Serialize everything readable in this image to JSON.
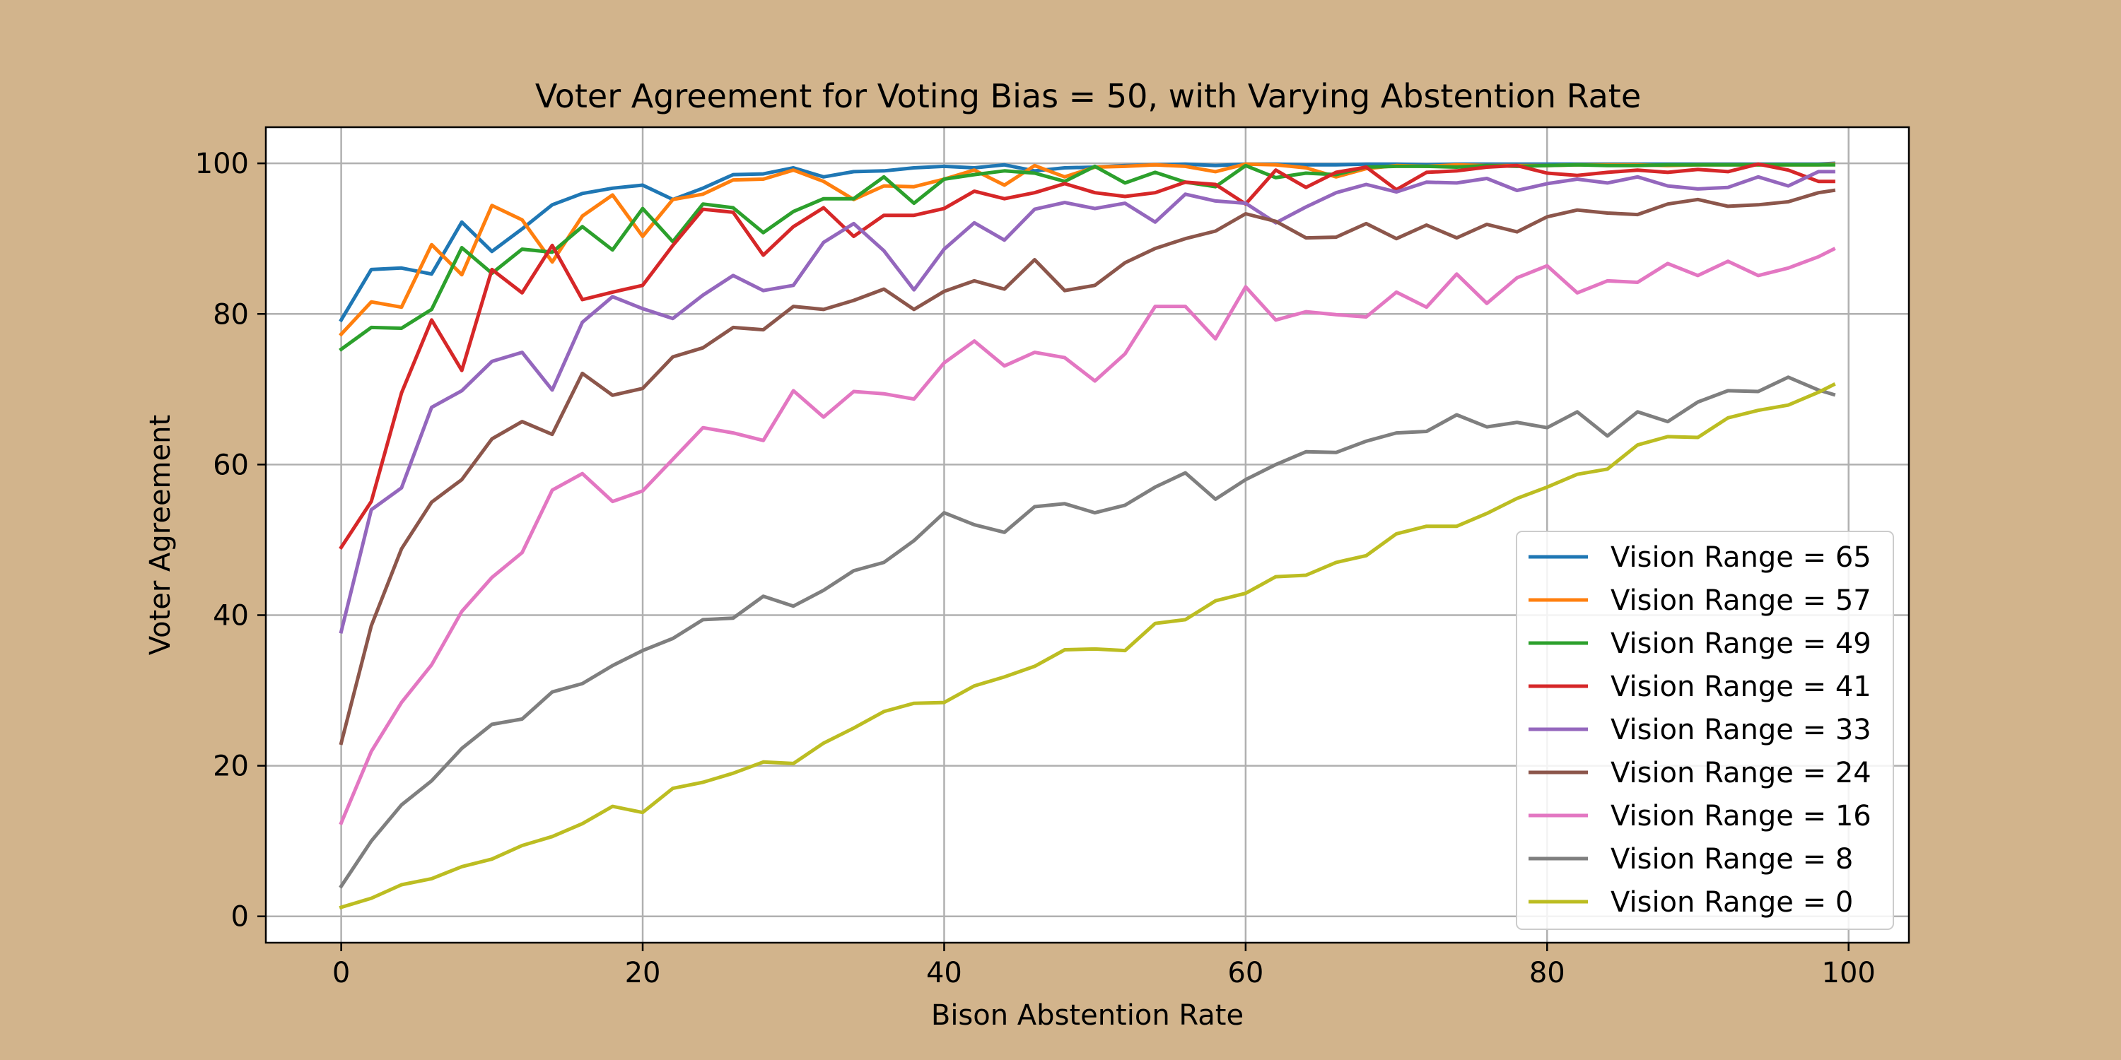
{
  "chart_data": {
    "type": "line",
    "title": "Voter Agreement for Voting Bias = 50, with Varying Abstention Rate",
    "xlabel": "Bison Abstention Rate",
    "ylabel": "Voter Agreement",
    "xlim": [
      -5,
      104
    ],
    "ylim": [
      -3.5,
      104.8
    ],
    "xticks": [
      0,
      20,
      40,
      60,
      80,
      100
    ],
    "yticks": [
      0,
      20,
      40,
      60,
      80,
      100
    ],
    "xtick_labels": [
      "0",
      "20",
      "40",
      "60",
      "80",
      "100"
    ],
    "ytick_labels": [
      "0",
      "20",
      "40",
      "60",
      "80",
      "100"
    ],
    "grid": true,
    "legend_position": "lower right",
    "background": "#d2b48c",
    "x": [
      0,
      2,
      4,
      6,
      8,
      10,
      12,
      14,
      16,
      18,
      20,
      22,
      24,
      26,
      28,
      30,
      32,
      34,
      36,
      38,
      40,
      42,
      44,
      46,
      48,
      50,
      52,
      54,
      56,
      58,
      60,
      62,
      64,
      66,
      68,
      70,
      72,
      74,
      76,
      78,
      80,
      82,
      84,
      86,
      88,
      90,
      92,
      94,
      96,
      98,
      99
    ],
    "series": [
      {
        "name": "Vision Range = 65",
        "color": "#1f77b4",
        "values": [
          79.2,
          85.9,
          86.1,
          85.3,
          92.2,
          88.3,
          91.3,
          94.5,
          96.0,
          96.7,
          97.1,
          95.2,
          96.7,
          98.5,
          98.6,
          99.4,
          98.2,
          98.9,
          99.0,
          99.4,
          99.6,
          99.4,
          99.8,
          99.0,
          99.4,
          99.5,
          99.7,
          99.8,
          99.9,
          99.7,
          99.9,
          99.9,
          99.8,
          99.8,
          99.9,
          99.9,
          99.8,
          99.9,
          99.9,
          99.9,
          99.9,
          99.9,
          99.9,
          99.9,
          99.9,
          99.9,
          99.9,
          99.9,
          99.9,
          99.9,
          100.0
        ]
      },
      {
        "name": "Vision Range = 57",
        "color": "#ff7f0e",
        "values": [
          77.3,
          81.6,
          80.9,
          89.2,
          85.2,
          94.4,
          92.5,
          86.9,
          93.0,
          95.8,
          90.3,
          95.2,
          95.9,
          97.8,
          97.9,
          99.1,
          97.6,
          95.2,
          97.0,
          96.9,
          97.9,
          99.1,
          97.1,
          99.7,
          98.2,
          99.5,
          99.6,
          99.8,
          99.6,
          98.9,
          99.9,
          99.8,
          99.4,
          98.2,
          99.3,
          99.7,
          99.6,
          99.8,
          99.7,
          99.7,
          99.7,
          99.8,
          99.8,
          99.8,
          99.7,
          99.8,
          99.8,
          99.8,
          99.8,
          99.8,
          99.9
        ]
      },
      {
        "name": "Vision Range = 49",
        "color": "#2ca02c",
        "values": [
          75.3,
          78.2,
          78.1,
          80.6,
          88.8,
          85.4,
          88.6,
          88.2,
          91.6,
          88.5,
          94.0,
          89.6,
          94.6,
          94.1,
          90.8,
          93.6,
          95.3,
          95.3,
          98.2,
          94.7,
          97.9,
          98.5,
          99.0,
          98.7,
          97.6,
          99.6,
          97.4,
          98.8,
          97.5,
          96.9,
          99.7,
          98.1,
          98.7,
          98.5,
          99.5,
          99.6,
          99.6,
          99.5,
          99.7,
          99.6,
          99.7,
          99.8,
          99.7,
          99.7,
          99.8,
          99.8,
          99.8,
          99.8,
          99.8,
          99.8,
          99.8
        ]
      },
      {
        "name": "Vision Range = 41",
        "color": "#d62728",
        "values": [
          49.0,
          55.1,
          69.5,
          79.2,
          72.5,
          85.9,
          82.8,
          89.1,
          81.9,
          82.9,
          83.8,
          89.1,
          93.9,
          93.5,
          87.8,
          91.6,
          94.1,
          90.3,
          93.1,
          93.1,
          94.0,
          96.3,
          95.3,
          96.1,
          97.3,
          96.1,
          95.6,
          96.1,
          97.5,
          97.2,
          94.6,
          99.1,
          96.8,
          98.8,
          99.5,
          96.5,
          98.8,
          99.0,
          99.5,
          99.7,
          98.7,
          98.4,
          98.8,
          99.1,
          98.8,
          99.2,
          98.9,
          99.9,
          99.1,
          97.6,
          97.6
        ]
      },
      {
        "name": "Vision Range = 33",
        "color": "#9467bd",
        "values": [
          37.8,
          54.0,
          56.9,
          67.6,
          69.8,
          73.7,
          74.9,
          69.9,
          78.9,
          82.3,
          80.7,
          79.4,
          82.5,
          85.1,
          83.1,
          83.8,
          89.5,
          92.0,
          88.4,
          83.2,
          88.6,
          92.1,
          89.8,
          93.9,
          94.8,
          94.0,
          94.7,
          92.2,
          95.9,
          95.0,
          94.7,
          92.1,
          94.2,
          96.1,
          97.2,
          96.2,
          97.5,
          97.4,
          98.0,
          96.4,
          97.3,
          97.9,
          97.4,
          98.2,
          97.0,
          96.6,
          96.8,
          98.2,
          97.0,
          98.9,
          98.9
        ]
      },
      {
        "name": "Vision Range = 24",
        "color": "#8c564b",
        "values": [
          23.0,
          38.6,
          48.8,
          55.0,
          58.0,
          63.4,
          65.7,
          64.0,
          72.1,
          69.2,
          70.1,
          74.3,
          75.5,
          78.2,
          77.9,
          81.0,
          80.6,
          81.8,
          83.3,
          80.6,
          83.0,
          84.4,
          83.3,
          87.2,
          83.1,
          83.8,
          86.8,
          88.7,
          90.0,
          91.0,
          93.3,
          92.3,
          90.1,
          90.2,
          92.0,
          90.0,
          91.8,
          90.1,
          91.9,
          90.9,
          92.9,
          93.8,
          93.4,
          93.2,
          94.6,
          95.2,
          94.3,
          94.5,
          94.9,
          96.1,
          96.4
        ]
      },
      {
        "name": "Vision Range = 16",
        "color": "#e377c2",
        "values": [
          12.4,
          21.9,
          28.4,
          33.4,
          40.5,
          45.0,
          48.3,
          56.6,
          58.8,
          55.1,
          56.5,
          60.7,
          64.9,
          64.2,
          63.2,
          69.8,
          66.3,
          69.7,
          69.4,
          68.7,
          73.5,
          76.4,
          73.1,
          74.9,
          74.2,
          71.1,
          74.7,
          81.0,
          81.0,
          76.7,
          83.6,
          79.2,
          80.3,
          79.9,
          79.6,
          82.9,
          80.9,
          85.3,
          81.4,
          84.8,
          86.4,
          82.8,
          84.4,
          84.2,
          86.7,
          85.1,
          87.0,
          85.1,
          86.1,
          87.6,
          88.6
        ]
      },
      {
        "name": "Vision Range = 8",
        "color": "#7f7f7f",
        "values": [
          4.0,
          10.0,
          14.8,
          18.0,
          22.3,
          25.5,
          26.2,
          29.8,
          30.9,
          33.3,
          35.3,
          36.9,
          39.4,
          39.6,
          42.5,
          41.2,
          43.3,
          45.9,
          47.0,
          49.9,
          53.6,
          52.0,
          51.0,
          54.4,
          54.8,
          53.6,
          54.6,
          57.0,
          58.9,
          55.4,
          58.0,
          60.0,
          61.7,
          61.6,
          63.1,
          64.2,
          64.4,
          66.6,
          65.0,
          65.6,
          64.9,
          67.0,
          63.8,
          67.0,
          65.7,
          68.3,
          69.8,
          69.7,
          71.6,
          69.9,
          69.3
        ]
      },
      {
        "name": "Vision Range = 0",
        "color": "#bcbd22",
        "values": [
          1.2,
          2.4,
          4.2,
          5.0,
          6.6,
          7.6,
          9.4,
          10.6,
          12.3,
          14.6,
          13.8,
          17.0,
          17.8,
          19.0,
          20.5,
          20.3,
          23.0,
          25.0,
          27.2,
          28.3,
          28.4,
          30.6,
          31.8,
          33.2,
          35.4,
          35.5,
          35.3,
          38.9,
          39.4,
          41.9,
          42.9,
          45.1,
          45.3,
          47.0,
          47.9,
          50.8,
          51.8,
          51.8,
          53.5,
          55.5,
          57.0,
          58.7,
          59.4,
          62.6,
          63.7,
          63.6,
          66.2,
          67.2,
          67.9,
          69.6,
          70.6
        ]
      }
    ]
  }
}
